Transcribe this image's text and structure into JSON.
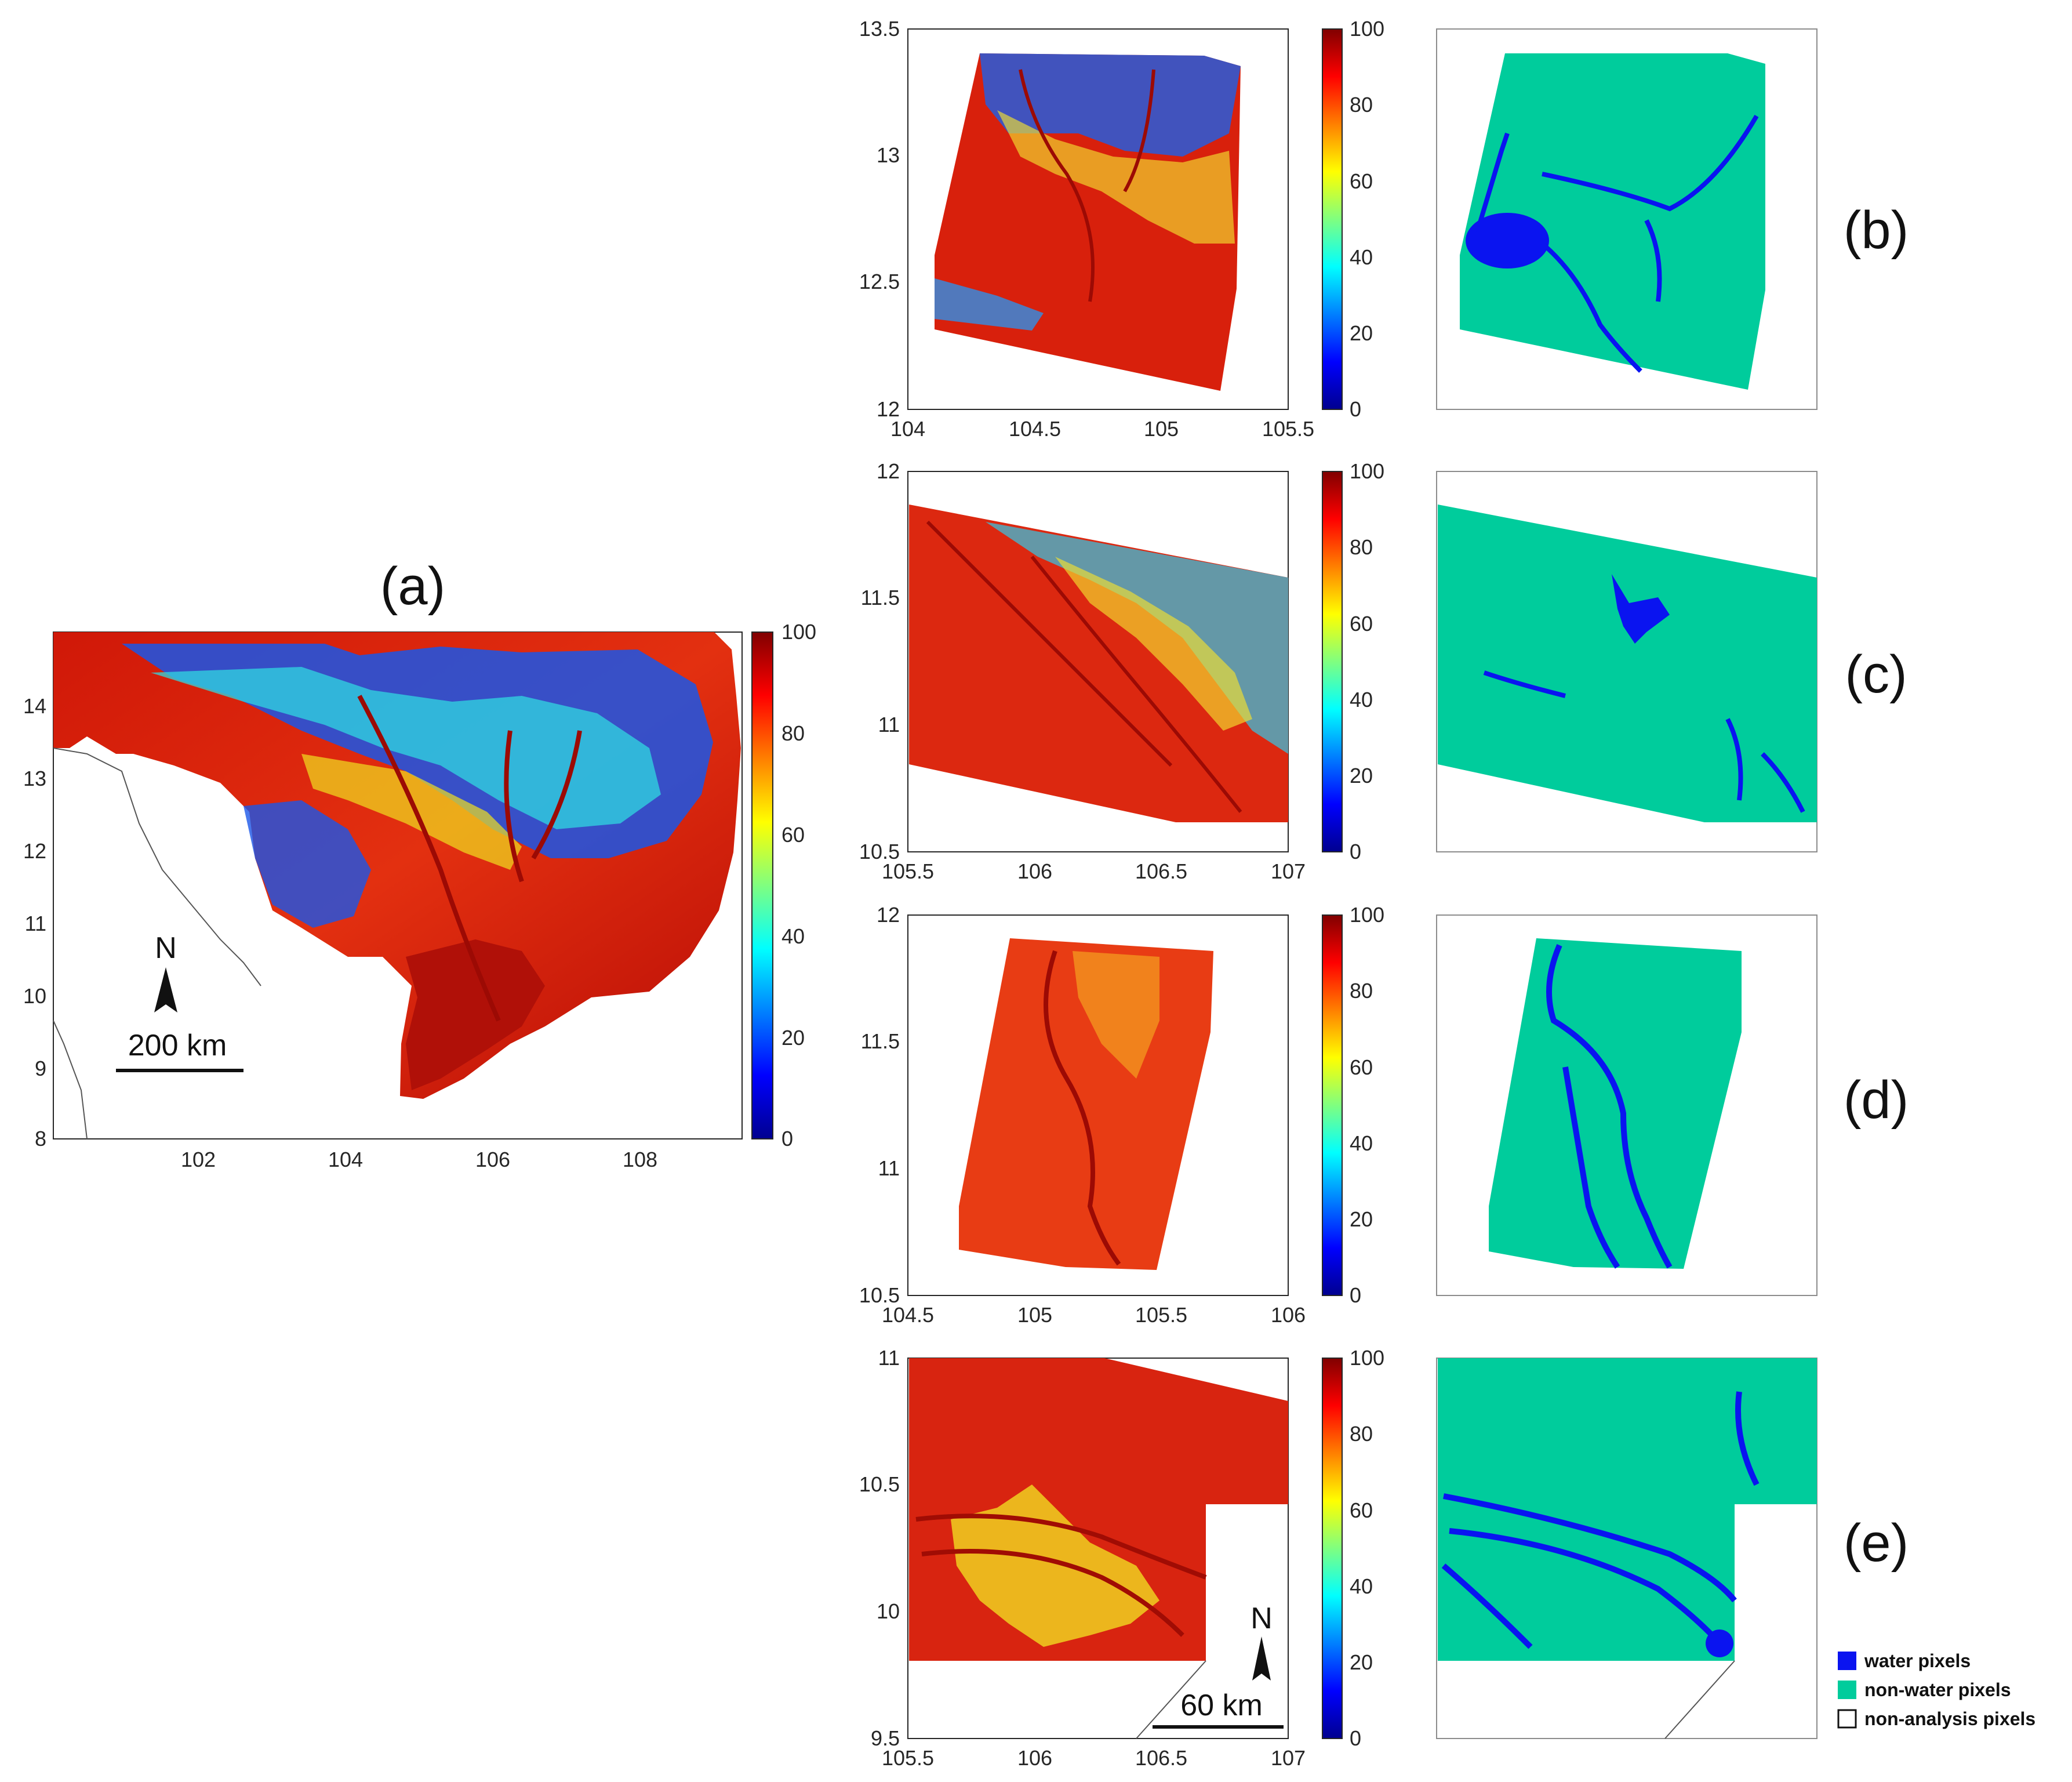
{
  "colors": {
    "water": "#0a14f0",
    "non_water": "#00cc9c",
    "axes": "#262626",
    "frame": "#8c8c8c"
  },
  "panels": {
    "a": {
      "label": "(a)",
      "yticks": [
        "14",
        "13",
        "12",
        "11",
        "10",
        "9",
        "8"
      ],
      "xticks": [
        "102",
        "104",
        "106",
        "108"
      ],
      "colorbar_ticks": [
        "100",
        "80",
        "60",
        "40",
        "20",
        "0"
      ],
      "north": "N",
      "scalebar": "200 km"
    },
    "b": {
      "label": "(b)",
      "yticks": [
        "13.5",
        "13",
        "12.5",
        "12"
      ],
      "xticks": [
        "104",
        "104.5",
        "105",
        "105.5"
      ],
      "colorbar_ticks": [
        "100",
        "80",
        "60",
        "40",
        "20",
        "0"
      ]
    },
    "c": {
      "label": "(c)",
      "yticks": [
        "12",
        "11.5",
        "11",
        "10.5"
      ],
      "xticks": [
        "105.5",
        "106",
        "106.5",
        "107"
      ],
      "colorbar_ticks": [
        "100",
        "80",
        "60",
        "40",
        "20",
        "0"
      ]
    },
    "d": {
      "label": "(d)",
      "yticks": [
        "12",
        "11.5",
        "11",
        "10.5"
      ],
      "xticks": [
        "104.5",
        "105",
        "105.5",
        "106"
      ],
      "colorbar_ticks": [
        "100",
        "80",
        "60",
        "40",
        "20",
        "0"
      ]
    },
    "e": {
      "label": "(e)",
      "yticks": [
        "11",
        "10.5",
        "10",
        "9.5"
      ],
      "xticks": [
        "105.5",
        "106",
        "106.5",
        "107"
      ],
      "colorbar_ticks": [
        "100",
        "80",
        "60",
        "40",
        "20",
        "0"
      ],
      "north": "N",
      "scalebar": "60 km"
    }
  },
  "legend": {
    "water": "water pixels",
    "non_water": "non-water pixels",
    "non_analysis": "non-analysis pixels"
  }
}
